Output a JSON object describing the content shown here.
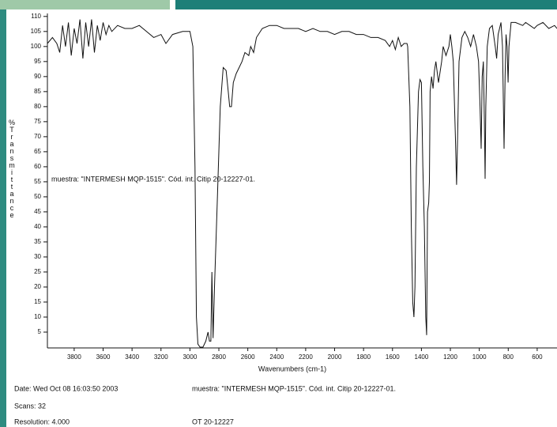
{
  "chart_data": {
    "type": "line",
    "x_label": "Wavenumbers (cm-1)",
    "y_label": "%Transmittance",
    "annotation": "muestra: \"INTERMESH MQP-1515\". Cód. int. Citip 20-12227-01.",
    "color": "#111111",
    "xlim": [
      3985,
      463
    ],
    "xticks": [
      3800,
      3600,
      3400,
      3200,
      3000,
      2800,
      2600,
      2400,
      2200,
      2000,
      1800,
      1600,
      1400,
      1200,
      1000,
      800,
      600
    ],
    "ylim": [
      0,
      111
    ],
    "yticks": [
      5,
      10,
      15,
      20,
      25,
      30,
      35,
      40,
      45,
      50,
      55,
      60,
      65,
      70,
      75,
      80,
      85,
      90,
      95,
      100,
      105,
      110
    ],
    "grid": false,
    "x": [
      3985,
      3950,
      3920,
      3900,
      3880,
      3860,
      3840,
      3820,
      3800,
      3780,
      3760,
      3740,
      3720,
      3700,
      3680,
      3660,
      3640,
      3620,
      3600,
      3580,
      3560,
      3540,
      3500,
      3450,
      3400,
      3350,
      3300,
      3250,
      3200,
      3166,
      3120,
      3050,
      3000,
      2980,
      2965,
      2955,
      2945,
      2930,
      2910,
      2890,
      2875,
      2865,
      2855,
      2848,
      2840,
      2830,
      2810,
      2790,
      2770,
      2750,
      2735,
      2725,
      2713,
      2700,
      2680,
      2660,
      2640,
      2620,
      2593,
      2580,
      2560,
      2540,
      2500,
      2450,
      2400,
      2350,
      2300,
      2250,
      2200,
      2150,
      2100,
      2050,
      2000,
      1950,
      1900,
      1850,
      1800,
      1750,
      1700,
      1650,
      1620,
      1600,
      1580,
      1560,
      1540,
      1520,
      1500,
      1495,
      1480,
      1470,
      1460,
      1452,
      1445,
      1435,
      1420,
      1410,
      1400,
      1390,
      1380,
      1370,
      1364,
      1358,
      1350,
      1345,
      1340,
      1330,
      1320,
      1310,
      1300,
      1282,
      1260,
      1250,
      1230,
      1210,
      1200,
      1190,
      1180,
      1165,
      1157,
      1150,
      1140,
      1120,
      1100,
      1080,
      1060,
      1040,
      1020,
      1005,
      995,
      987,
      980,
      972,
      965,
      960,
      955,
      945,
      930,
      910,
      890,
      880,
      870,
      850,
      840,
      835,
      829,
      822,
      815,
      808,
      801,
      795,
      780,
      750,
      700,
      680,
      650,
      620,
      600,
      560,
      520,
      480,
      463
    ],
    "values": [
      101,
      103,
      101,
      98,
      107,
      100,
      108,
      97,
      106,
      101,
      109,
      96,
      108,
      100,
      109,
      98,
      107,
      102,
      108,
      104,
      107,
      105,
      107,
      106,
      106,
      107,
      105,
      103,
      104,
      101,
      104,
      105,
      105,
      100,
      60,
      10,
      1,
      0,
      0,
      2,
      5,
      2,
      2,
      25,
      3,
      20,
      50,
      80,
      93,
      92,
      85,
      80,
      80,
      88,
      91,
      93,
      95,
      98,
      97,
      100,
      98,
      103,
      106,
      107,
      107,
      106,
      106,
      106,
      105,
      106,
      105,
      105,
      104,
      105,
      105,
      104,
      104,
      103,
      103,
      102,
      100,
      102,
      99,
      103,
      100,
      101,
      101,
      100,
      80,
      40,
      15,
      10,
      20,
      60,
      85,
      89,
      88,
      60,
      40,
      10,
      4,
      45,
      48,
      55,
      85,
      90,
      86,
      92,
      95,
      88,
      95,
      100,
      97,
      100,
      104,
      100,
      95,
      70,
      54,
      70,
      95,
      103,
      105,
      103,
      100,
      104,
      100,
      95,
      80,
      66,
      90,
      95,
      75,
      56,
      80,
      100,
      106,
      107,
      100,
      96,
      104,
      108,
      100,
      85,
      66,
      90,
      104,
      100,
      88,
      100,
      108,
      108,
      107,
      108,
      107,
      106,
      107,
      108,
      106,
      107,
      106
    ]
  },
  "footer": {
    "date": "Date: Wed Oct 08 16:03:50 2003",
    "scans": "Scans: 32",
    "resolution": "Resolution:  4.000",
    "sample": "muestra: \"INTERMESH MQP-1515\". Cód. int. Citip 20-12227-01.",
    "order": "OT 20-12227"
  }
}
